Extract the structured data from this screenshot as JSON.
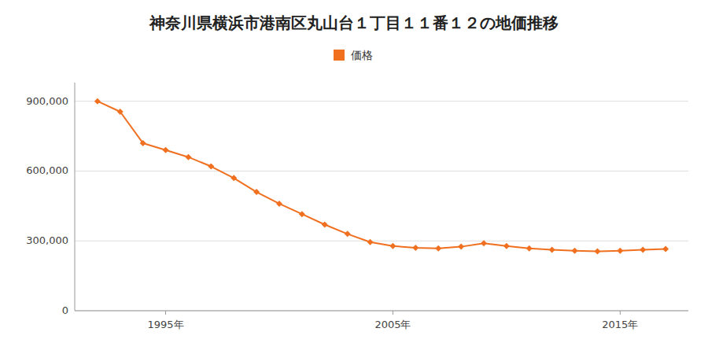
{
  "chart_data": {
    "type": "line",
    "title": "神奈川県横浜市港南区丸山台１丁目１１番１２の地価推移",
    "x": [
      1992,
      1993,
      1994,
      1995,
      1996,
      1997,
      1998,
      1999,
      2000,
      2001,
      2002,
      2003,
      2004,
      2005,
      2006,
      2007,
      2008,
      2009,
      2010,
      2011,
      2012,
      2013,
      2014,
      2015,
      2016,
      2017
    ],
    "series": [
      {
        "name": "価格",
        "color": "#F07020",
        "marker": "diamond",
        "line_style": "solid",
        "values": [
          900000,
          855000,
          720000,
          690000,
          660000,
          620000,
          570000,
          510000,
          460000,
          415000,
          370000,
          330000,
          295000,
          278000,
          270000,
          268000,
          275000,
          290000,
          278000,
          268000,
          262000,
          258000,
          255000,
          258000,
          262000,
          265000
        ]
      }
    ],
    "xlim": [
      1991,
      2018
    ],
    "xticks": [
      {
        "value": 1995,
        "label": "1995年"
      },
      {
        "value": 2005,
        "label": "2005年"
      },
      {
        "value": 2015,
        "label": "2015年"
      }
    ],
    "ylim": [
      0,
      980000
    ],
    "yticks": [
      0,
      {
        "value": 300000,
        "label": "300,000"
      },
      {
        "value": 600000,
        "label": "600,000"
      },
      {
        "value": 900000,
        "label": "900,000"
      }
    ],
    "grid": true,
    "legend": "top"
  }
}
